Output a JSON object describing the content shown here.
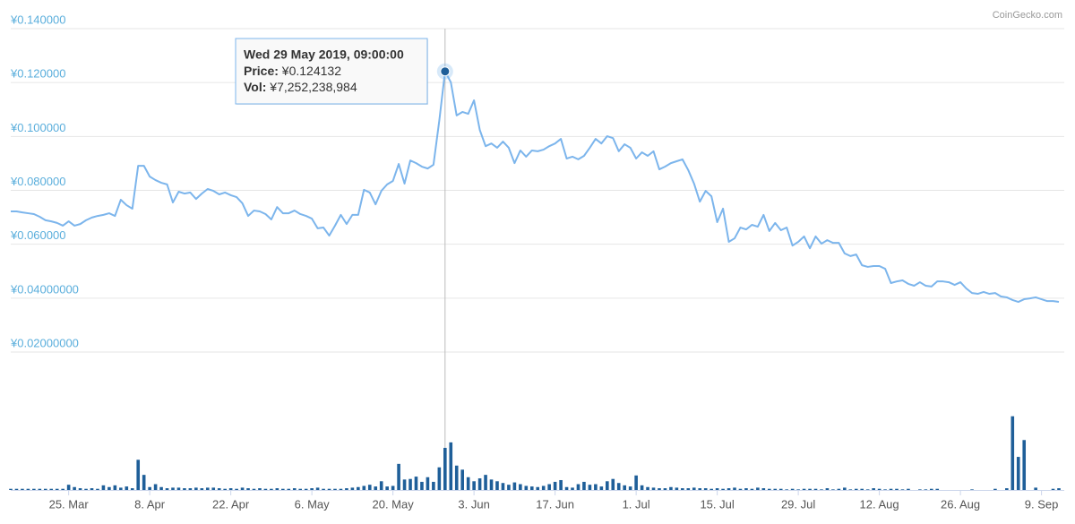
{
  "chart_data": {
    "type": "line",
    "watermark": "CoinGecko.com",
    "x": [
      "2019-03-15",
      "2019-03-16",
      "2019-03-17",
      "2019-03-18",
      "2019-03-19",
      "2019-03-20",
      "2019-03-21",
      "2019-03-22",
      "2019-03-23",
      "2019-03-24",
      "2019-03-25",
      "2019-03-26",
      "2019-03-27",
      "2019-03-28",
      "2019-03-29",
      "2019-03-30",
      "2019-03-31",
      "2019-04-01",
      "2019-04-02",
      "2019-04-03",
      "2019-04-04",
      "2019-04-05",
      "2019-04-06",
      "2019-04-07",
      "2019-04-08",
      "2019-04-09",
      "2019-04-10",
      "2019-04-11",
      "2019-04-12",
      "2019-04-13",
      "2019-04-14",
      "2019-04-15",
      "2019-04-16",
      "2019-04-17",
      "2019-04-18",
      "2019-04-19",
      "2019-04-20",
      "2019-04-21",
      "2019-04-22",
      "2019-04-23",
      "2019-04-24",
      "2019-04-25",
      "2019-04-26",
      "2019-04-27",
      "2019-04-28",
      "2019-04-29",
      "2019-04-30",
      "2019-05-01",
      "2019-05-02",
      "2019-05-03",
      "2019-05-04",
      "2019-05-05",
      "2019-05-06",
      "2019-05-07",
      "2019-05-08",
      "2019-05-09",
      "2019-05-10",
      "2019-05-11",
      "2019-05-12",
      "2019-05-13",
      "2019-05-14",
      "2019-05-15",
      "2019-05-16",
      "2019-05-17",
      "2019-05-18",
      "2019-05-19",
      "2019-05-20",
      "2019-05-21",
      "2019-05-22",
      "2019-05-23",
      "2019-05-24",
      "2019-05-25",
      "2019-05-26",
      "2019-05-27",
      "2019-05-28",
      "2019-05-29",
      "2019-05-30",
      "2019-05-31",
      "2019-06-01",
      "2019-06-02",
      "2019-06-03",
      "2019-06-04",
      "2019-06-05",
      "2019-06-06",
      "2019-06-07",
      "2019-06-08",
      "2019-06-09",
      "2019-06-10",
      "2019-06-11",
      "2019-06-12",
      "2019-06-13",
      "2019-06-14",
      "2019-06-15",
      "2019-06-16",
      "2019-06-17",
      "2019-06-18",
      "2019-06-19",
      "2019-06-20",
      "2019-06-21",
      "2019-06-22",
      "2019-06-23",
      "2019-06-24",
      "2019-06-25",
      "2019-06-26",
      "2019-06-27",
      "2019-06-28",
      "2019-06-29",
      "2019-06-30",
      "2019-07-01",
      "2019-07-02",
      "2019-07-03",
      "2019-07-04",
      "2019-07-05",
      "2019-07-06",
      "2019-07-07",
      "2019-07-08",
      "2019-07-09",
      "2019-07-10",
      "2019-07-11",
      "2019-07-12",
      "2019-07-13",
      "2019-07-14",
      "2019-07-15",
      "2019-07-16",
      "2019-07-17",
      "2019-07-18",
      "2019-07-19",
      "2019-07-20",
      "2019-07-21",
      "2019-07-22",
      "2019-07-23",
      "2019-07-24",
      "2019-07-25",
      "2019-07-26",
      "2019-07-27",
      "2019-07-28",
      "2019-07-29",
      "2019-07-30",
      "2019-07-31",
      "2019-08-01",
      "2019-08-02",
      "2019-08-03",
      "2019-08-04",
      "2019-08-05",
      "2019-08-06",
      "2019-08-07",
      "2019-08-08",
      "2019-08-09",
      "2019-08-10",
      "2019-08-11",
      "2019-08-12",
      "2019-08-13",
      "2019-08-14",
      "2019-08-15",
      "2019-08-16",
      "2019-08-17",
      "2019-08-18",
      "2019-08-19",
      "2019-08-20",
      "2019-08-21",
      "2019-08-22",
      "2019-08-23",
      "2019-08-24",
      "2019-08-25",
      "2019-08-26",
      "2019-08-27",
      "2019-08-28",
      "2019-08-29",
      "2019-08-30",
      "2019-08-31",
      "2019-09-01",
      "2019-09-02",
      "2019-09-03",
      "2019-09-04",
      "2019-09-05",
      "2019-09-06",
      "2019-09-07",
      "2019-09-08",
      "2019-09-09",
      "2019-09-10",
      "2019-09-11",
      "2019-09-12"
    ],
    "xlim": [
      "2019-03-15",
      "2019-09-12"
    ],
    "xticks": [
      {
        "value": "2019-03-25",
        "label": "25. Mar"
      },
      {
        "value": "2019-04-08",
        "label": "8. Apr"
      },
      {
        "value": "2019-04-22",
        "label": "22. Apr"
      },
      {
        "value": "2019-05-06",
        "label": "6. May"
      },
      {
        "value": "2019-05-20",
        "label": "20. May"
      },
      {
        "value": "2019-06-03",
        "label": "3. Jun"
      },
      {
        "value": "2019-06-17",
        "label": "17. Jun"
      },
      {
        "value": "2019-07-01",
        "label": "1. Jul"
      },
      {
        "value": "2019-07-15",
        "label": "15. Jul"
      },
      {
        "value": "2019-07-29",
        "label": "29. Jul"
      },
      {
        "value": "2019-08-12",
        "label": "12. Aug"
      },
      {
        "value": "2019-08-26",
        "label": "26. Aug"
      },
      {
        "value": "2019-09-09",
        "label": "9. Sep"
      }
    ],
    "ylim": [
      0.02,
      0.14
    ],
    "yticks": [
      {
        "value": 0.14,
        "label": "¥0.140000"
      },
      {
        "value": 0.12,
        "label": "¥0.120000"
      },
      {
        "value": 0.1,
        "label": "¥0.100000"
      },
      {
        "value": 0.08,
        "label": "¥0.080000"
      },
      {
        "value": 0.06,
        "label": "¥0.060000"
      },
      {
        "value": 0.04,
        "label": "¥0.04000000"
      },
      {
        "value": 0.02,
        "label": "¥0.02000000"
      }
    ],
    "y2lim": [
      0,
      19600000000
    ],
    "grid": true,
    "series": [
      {
        "type": "line",
        "color": "#7cb5ec",
        "values": [
          0.0722,
          0.0722,
          0.0718,
          0.0715,
          0.0712,
          0.0702,
          0.0689,
          0.0685,
          0.0679,
          0.0669,
          0.0685,
          0.0669,
          0.0675,
          0.0689,
          0.0699,
          0.0705,
          0.0709,
          0.0715,
          0.0705,
          0.0765,
          0.0745,
          0.0732,
          0.0891,
          0.0891,
          0.0851,
          0.0838,
          0.0828,
          0.0822,
          0.0755,
          0.0795,
          0.0788,
          0.0792,
          0.0768,
          0.0788,
          0.0805,
          0.0798,
          0.0785,
          0.0792,
          0.0782,
          0.0775,
          0.0752,
          0.0705,
          0.0725,
          0.0722,
          0.0712,
          0.0692,
          0.0738,
          0.0715,
          0.0715,
          0.0725,
          0.0712,
          0.0705,
          0.0695,
          0.0659,
          0.0662,
          0.0632,
          0.0669,
          0.0709,
          0.0675,
          0.0709,
          0.0709,
          0.0802,
          0.0792,
          0.0748,
          0.0798,
          0.0822,
          0.0835,
          0.0898,
          0.0825,
          0.0911,
          0.0901,
          0.0888,
          0.0881,
          0.0895,
          0.1058,
          0.124132,
          0.1201,
          0.1078,
          0.1091,
          0.1084,
          0.1134,
          0.1024,
          0.0964,
          0.0974,
          0.0958,
          0.0981,
          0.0958,
          0.0901,
          0.0948,
          0.0925,
          0.0948,
          0.0945,
          0.0951,
          0.0964,
          0.0974,
          0.0991,
          0.0918,
          0.0925,
          0.0915,
          0.0928,
          0.0958,
          0.0991,
          0.0974,
          0.1001,
          0.0994,
          0.0945,
          0.0971,
          0.0958,
          0.0918,
          0.0941,
          0.0928,
          0.0945,
          0.0878,
          0.0888,
          0.0901,
          0.0908,
          0.0915,
          0.0875,
          0.0825,
          0.0758,
          0.0798,
          0.0778,
          0.0682,
          0.0732,
          0.0609,
          0.0622,
          0.0662,
          0.0655,
          0.0672,
          0.0665,
          0.0709,
          0.0649,
          0.0679,
          0.0652,
          0.0662,
          0.0595,
          0.0609,
          0.0629,
          0.0585,
          0.0629,
          0.0602,
          0.0615,
          0.0605,
          0.0605,
          0.0566,
          0.0556,
          0.0562,
          0.0522,
          0.0516,
          0.0519,
          0.0519,
          0.0509,
          0.0456,
          0.0462,
          0.0466,
          0.0453,
          0.0446,
          0.0459,
          0.0446,
          0.0443,
          0.0462,
          0.0462,
          0.0459,
          0.0449,
          0.0459,
          0.0436,
          0.0419,
          0.0416,
          0.0423,
          0.0416,
          0.0419,
          0.0406,
          0.0403,
          0.0393,
          0.0386,
          0.0396,
          0.0399,
          0.0403,
          0.0396,
          0.0389,
          0.0389,
          0.0386
        ]
      },
      {
        "type": "bar",
        "axis": "y2",
        "color": "#1f5f99",
        "values": [
          200000000,
          200000000,
          200000000,
          200000000,
          200000000,
          200000000,
          200000000,
          200000000,
          200000000,
          200000000,
          900000000,
          500000000,
          300000000,
          200000000,
          300000000,
          200000000,
          800000000,
          500000000,
          800000000,
          400000000,
          600000000,
          300000000,
          5200000000,
          2600000000,
          500000000,
          1000000000,
          500000000,
          300000000,
          400000000,
          400000000,
          300000000,
          300000000,
          400000000,
          300000000,
          400000000,
          400000000,
          300000000,
          200000000,
          300000000,
          200000000,
          400000000,
          300000000,
          200000000,
          300000000,
          200000000,
          200000000,
          300000000,
          200000000,
          200000000,
          300000000,
          200000000,
          200000000,
          300000000,
          400000000,
          200000000,
          200000000,
          200000000,
          200000000,
          300000000,
          400000000,
          500000000,
          700000000,
          900000000,
          600000000,
          1500000000,
          600000000,
          700000000,
          4500000000,
          1800000000,
          1900000000,
          2300000000,
          1400000000,
          2200000000,
          1400000000,
          3900000000,
          7252238984,
          8200000000,
          4200000000,
          3500000000,
          2200000000,
          1500000000,
          2000000000,
          2600000000,
          1800000000,
          1500000000,
          1200000000,
          900000000,
          1300000000,
          1000000000,
          700000000,
          600000000,
          500000000,
          700000000,
          1000000000,
          1400000000,
          1700000000,
          500000000,
          400000000,
          1000000000,
          1400000000,
          900000000,
          1000000000,
          600000000,
          1500000000,
          1900000000,
          1200000000,
          800000000,
          600000000,
          2500000000,
          800000000,
          500000000,
          400000000,
          300000000,
          300000000,
          500000000,
          400000000,
          300000000,
          300000000,
          400000000,
          300000000,
          300000000,
          200000000,
          300000000,
          200000000,
          300000000,
          400000000,
          200000000,
          300000000,
          200000000,
          400000000,
          300000000,
          200000000,
          200000000,
          200000000,
          100000000,
          200000000,
          100000000,
          200000000,
          200000000,
          200000000,
          100000000,
          300000000,
          100000000,
          200000000,
          400000000,
          100000000,
          200000000,
          200000000,
          100000000,
          300000000,
          200000000,
          100000000,
          200000000,
          200000000,
          100000000,
          200000000,
          0,
          100000000,
          100000000,
          200000000,
          200000000,
          0,
          0,
          0,
          0,
          0,
          100000000,
          0,
          0,
          0,
          200000000,
          0,
          300000000,
          12700000000,
          5700000000,
          8600000000,
          0,
          400000000,
          0,
          0,
          200000000,
          300000000
        ]
      }
    ],
    "tooltip": {
      "date": "Wed 29 May 2019, 09:00:00",
      "price_label": "Price:",
      "price": " ¥0.124132",
      "vol_label": "Vol:",
      "vol": " ¥7,252,238,984"
    }
  }
}
